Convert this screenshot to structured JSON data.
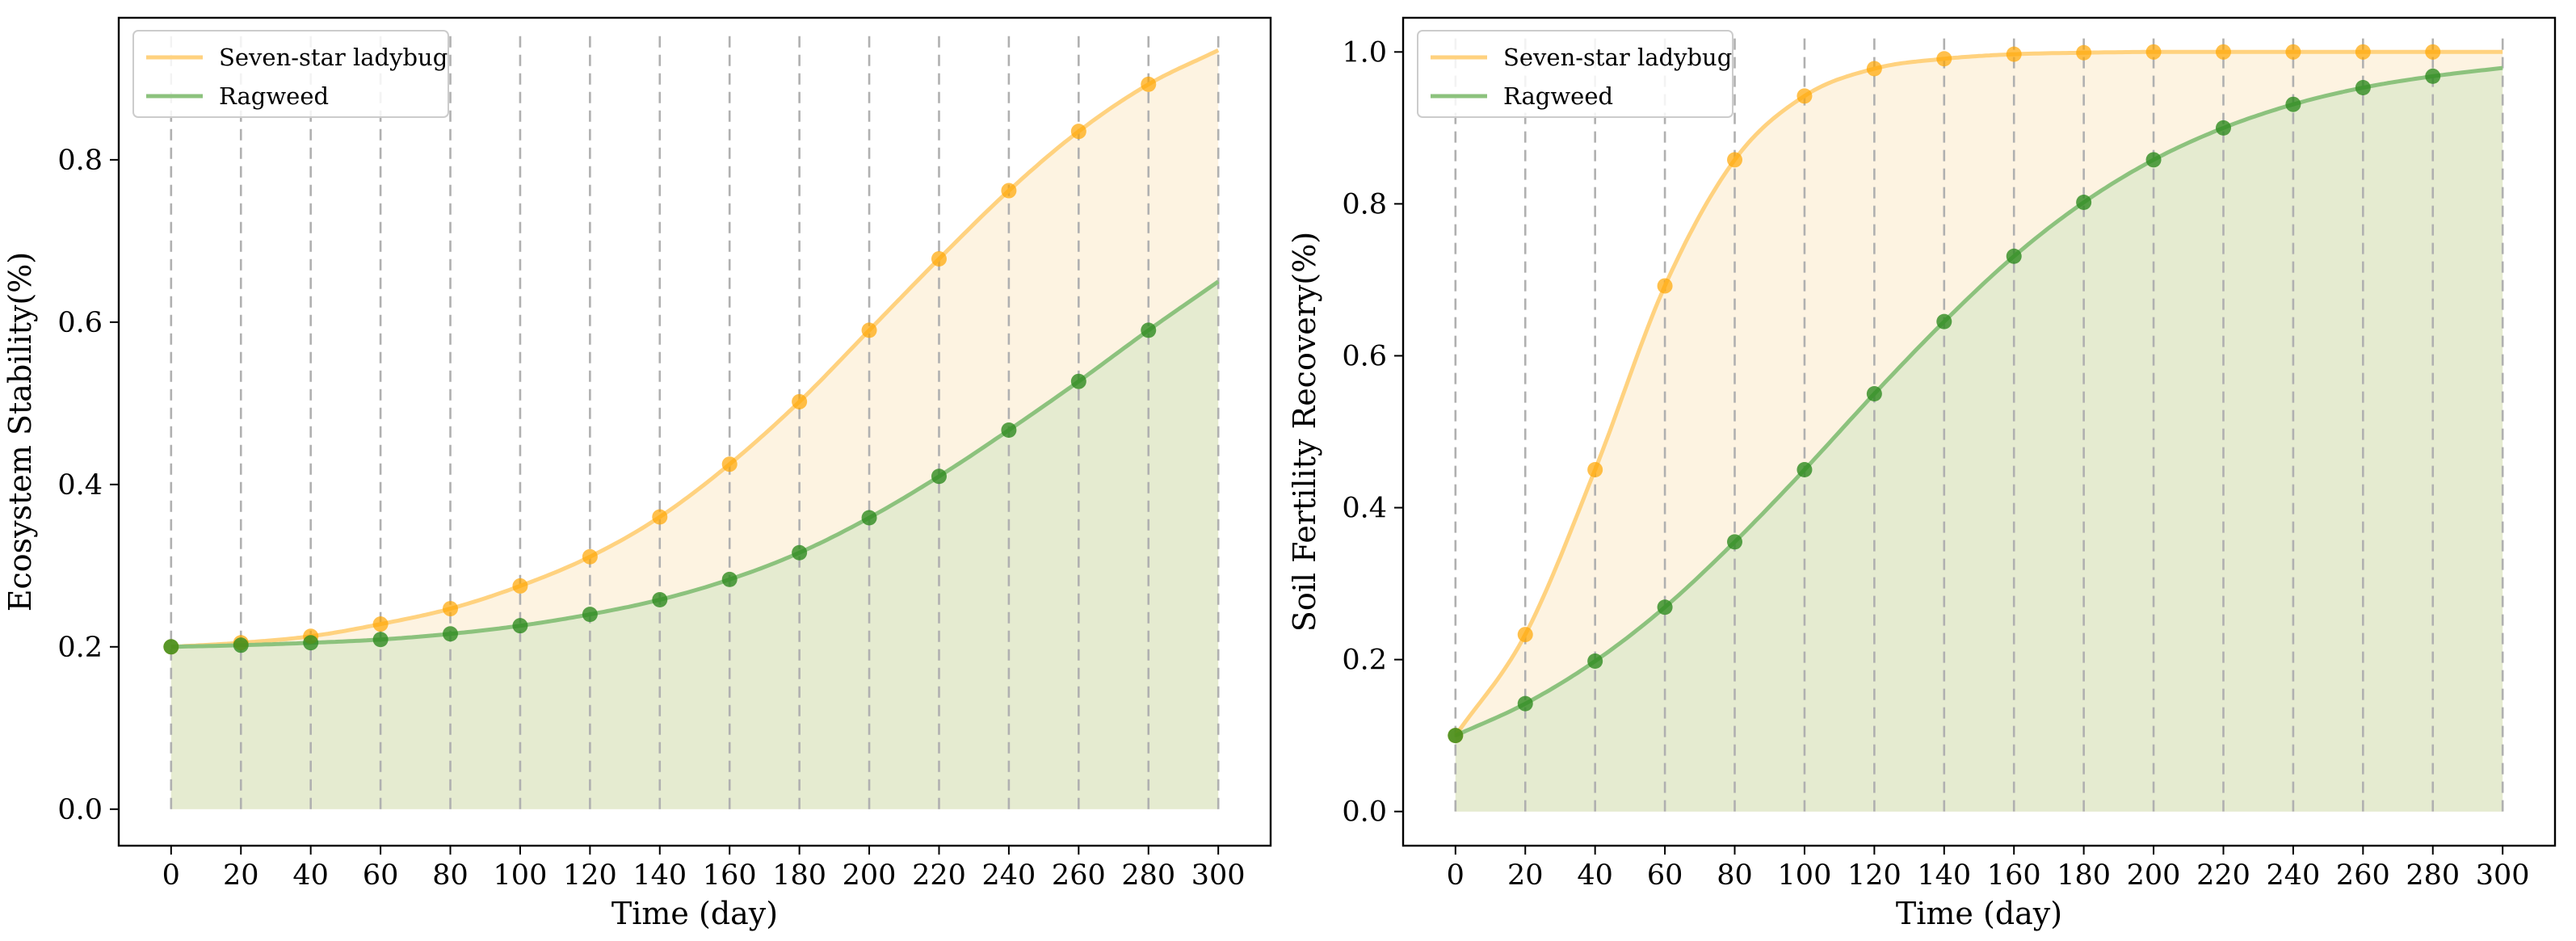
{
  "chart_data": [
    {
      "type": "line",
      "title": "",
      "xlabel": "Time (day)",
      "ylabel": "Ecosystem Stability(%)",
      "xlim": [
        -15,
        315
      ],
      "ylim": [
        -0.045,
        0.975
      ],
      "xticks": [
        "0",
        "20",
        "40",
        "60",
        "80",
        "100",
        "120",
        "140",
        "160",
        "180",
        "200",
        "220",
        "240",
        "260",
        "280",
        "300"
      ],
      "yticks": [
        "0.0",
        "0.2",
        "0.4",
        "0.6",
        "0.8"
      ],
      "vertical_grid": "dashed at every x tick",
      "legend_position": "top-left",
      "fill": "area under each curve shaded",
      "x_markers": [
        0,
        20,
        40,
        60,
        80,
        100,
        120,
        140,
        160,
        180,
        200,
        220,
        240,
        260,
        280
      ],
      "series": [
        {
          "name": "Seven-star ladybug",
          "color": "#ffd27f",
          "marker_color": "#ffa500",
          "fill_color": "#fdf3e1",
          "x": [
            0,
            20,
            40,
            60,
            80,
            100,
            120,
            140,
            160,
            180,
            200,
            220,
            240,
            260,
            280,
            300
          ],
          "values": [
            0.2,
            0.205,
            0.213,
            0.228,
            0.247,
            0.275,
            0.311,
            0.36,
            0.425,
            0.502,
            0.59,
            0.678,
            0.762,
            0.835,
            0.893,
            0.935
          ]
        },
        {
          "name": "Ragweed",
          "color": "#8cc27d",
          "marker_color": "#2e8b1f",
          "fill_color": "#e1e9cc",
          "x": [
            0,
            20,
            40,
            60,
            80,
            100,
            120,
            140,
            160,
            180,
            200,
            220,
            240,
            260,
            280,
            300
          ],
          "values": [
            0.2,
            0.202,
            0.205,
            0.209,
            0.216,
            0.226,
            0.24,
            0.258,
            0.283,
            0.316,
            0.359,
            0.41,
            0.467,
            0.527,
            0.59,
            0.65
          ]
        }
      ]
    },
    {
      "type": "line",
      "title": "",
      "xlabel": "Time (day)",
      "ylabel": "Soil Fertility Recovery(%)",
      "xlim": [
        -15,
        315
      ],
      "ylim": [
        -0.045,
        1.045
      ],
      "xticks": [
        "0",
        "20",
        "40",
        "60",
        "80",
        "100",
        "120",
        "140",
        "160",
        "180",
        "200",
        "220",
        "240",
        "260",
        "280",
        "300"
      ],
      "yticks": [
        "0.0",
        "0.2",
        "0.4",
        "0.6",
        "0.8",
        "1.0"
      ],
      "vertical_grid": "dashed at every x tick",
      "legend_position": "top-left",
      "fill": "area under each curve shaded",
      "x_markers": [
        0,
        20,
        40,
        60,
        80,
        100,
        120,
        140,
        160,
        180,
        200,
        220,
        240,
        260,
        280
      ],
      "series": [
        {
          "name": "Seven-star ladybug",
          "color": "#ffd27f",
          "marker_color": "#ffa500",
          "fill_color": "#fdf3e1",
          "x": [
            0,
            20,
            40,
            60,
            80,
            100,
            120,
            140,
            160,
            180,
            200,
            220,
            240,
            260,
            280,
            300
          ],
          "values": [
            0.1,
            0.233,
            0.45,
            0.692,
            0.858,
            0.942,
            0.978,
            0.991,
            0.997,
            0.999,
            1.0,
            1.0,
            1.0,
            1.0,
            1.0,
            1.0
          ]
        },
        {
          "name": "Ragweed",
          "color": "#8cc27d",
          "marker_color": "#2e8b1f",
          "fill_color": "#e1e9cc",
          "x": [
            0,
            20,
            40,
            60,
            80,
            100,
            120,
            140,
            160,
            180,
            200,
            220,
            240,
            260,
            280,
            300
          ],
          "values": [
            0.1,
            0.142,
            0.198,
            0.269,
            0.355,
            0.45,
            0.55,
            0.645,
            0.731,
            0.802,
            0.858,
            0.9,
            0.931,
            0.953,
            0.968,
            0.979
          ]
        }
      ]
    }
  ]
}
